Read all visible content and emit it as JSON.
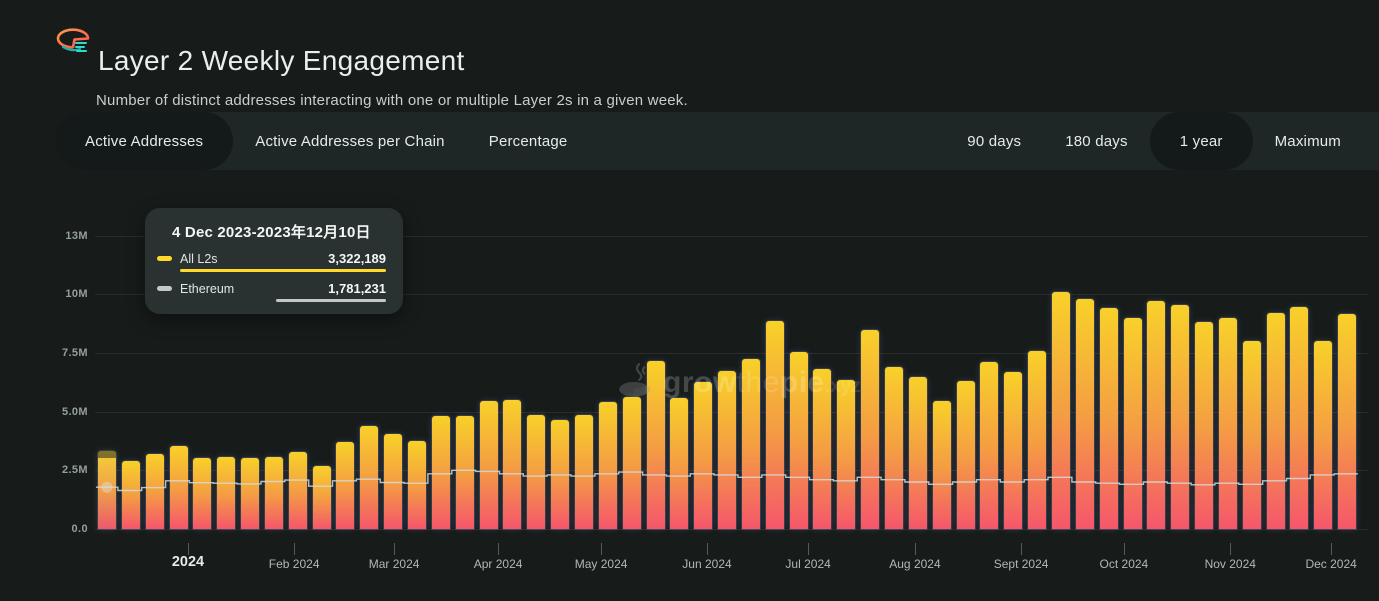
{
  "header": {
    "title": "Layer 2 Weekly Engagement",
    "subtitle": "Number of distinct addresses interacting with one or multiple Layer 2s in a given week.",
    "logo_icon": "growthepie-pie-icon"
  },
  "tabs": {
    "items": [
      {
        "label": "Active Addresses",
        "selected": true
      },
      {
        "label": "Active Addresses per Chain",
        "selected": false
      },
      {
        "label": "Percentage",
        "selected": false
      }
    ]
  },
  "timerange": {
    "items": [
      {
        "label": "90 days",
        "selected": false
      },
      {
        "label": "180 days",
        "selected": false
      },
      {
        "label": "1 year",
        "selected": true
      },
      {
        "label": "Maximum",
        "selected": false
      }
    ]
  },
  "tooltip": {
    "title": "4 Dec 2023-2023年12月10日",
    "rows": [
      {
        "series": "All L2s",
        "value": "3,322,189",
        "color": "#FFDB28"
      },
      {
        "series": "Ethereum",
        "value": "1,781,231",
        "color": "#C2C8C7"
      }
    ]
  },
  "watermark": {
    "word1": "grow",
    "word2": "the",
    "word3": "pie",
    "suffix": ".xyz",
    "icon": "growthepie-pie-icon"
  },
  "colors": {
    "page_bg": "#171B1A",
    "band_bg": "#1F2726",
    "selected_pill_bg": "#141A19",
    "accent_yellow": "#FFDF27",
    "accent_pink": "#FE5468",
    "ethereum_line": "#D4DBDA"
  },
  "chart_data": {
    "type": "bar",
    "title": "Layer 2 Weekly Engagement",
    "x_unit": "week",
    "weeks": 53,
    "first_week_label": "4 Dec 2023",
    "ylim": [
      0,
      13
    ],
    "grid": true,
    "hovered_week_index": 0,
    "y_ticks": [
      {
        "label": "0.0",
        "value": 0
      },
      {
        "label": "2.5M",
        "value": 2.5
      },
      {
        "label": "5.0M",
        "value": 5
      },
      {
        "label": "7.5M",
        "value": 7.5
      },
      {
        "label": "10M",
        "value": 10
      },
      {
        "label": "13M",
        "value": 13
      }
    ],
    "x_ticks": [
      {
        "label": "2024",
        "week": 3.4,
        "bold": true
      },
      {
        "label": "Feb 2024",
        "week": 7.85
      },
      {
        "label": "Mar 2024",
        "week": 12.04
      },
      {
        "label": "Apr 2024",
        "week": 16.4
      },
      {
        "label": "May 2024",
        "week": 20.72
      },
      {
        "label": "Jun 2024",
        "week": 25.16
      },
      {
        "label": "Jul 2024",
        "week": 29.4
      },
      {
        "label": "Aug 2024",
        "week": 33.88
      },
      {
        "label": "Sept 2024",
        "week": 38.33
      },
      {
        "label": "Oct 2024",
        "week": 42.64
      },
      {
        "label": "Nov 2024",
        "week": 47.1
      },
      {
        "label": "Dec 2024",
        "week": 51.33
      }
    ],
    "series": [
      {
        "name": "All L2s",
        "render": "bar",
        "color_stops": [
          "#F8D129",
          "#F49D43",
          "#F5566B"
        ],
        "values_millions": [
          3.32,
          2.89,
          3.19,
          3.53,
          3.02,
          3.06,
          3.02,
          3.06,
          3.28,
          2.67,
          3.71,
          4.4,
          4.05,
          3.75,
          4.83,
          4.79,
          5.47,
          5.48,
          4.84,
          4.63,
          4.84,
          5.39,
          5.64,
          7.17,
          5.56,
          6.25,
          6.74,
          7.24,
          8.87,
          7.54,
          6.8,
          6.34,
          8.45,
          6.88,
          6.46,
          5.44,
          6.28,
          7.1,
          6.67,
          7.57,
          10.1,
          9.8,
          9.4,
          9.0,
          9.7,
          9.55,
          8.8,
          9.0,
          8.0,
          9.2,
          9.45,
          8.0,
          9.15
        ]
      },
      {
        "name": "Ethereum",
        "render": "step-line",
        "color": "#D4DBDA",
        "values_millions": [
          1.78,
          1.64,
          1.76,
          2.05,
          1.97,
          1.95,
          1.92,
          2.02,
          2.08,
          1.82,
          2.05,
          2.12,
          1.98,
          1.95,
          2.35,
          2.5,
          2.45,
          2.35,
          2.25,
          2.3,
          2.25,
          2.35,
          2.42,
          2.3,
          2.25,
          2.35,
          2.3,
          2.2,
          2.3,
          2.2,
          2.1,
          2.05,
          2.2,
          2.1,
          2.0,
          1.9,
          2.0,
          2.1,
          2.0,
          2.1,
          2.2,
          2.0,
          1.95,
          1.9,
          2.0,
          1.95,
          1.88,
          1.95,
          1.9,
          2.05,
          2.15,
          2.3,
          2.35
        ]
      }
    ]
  }
}
